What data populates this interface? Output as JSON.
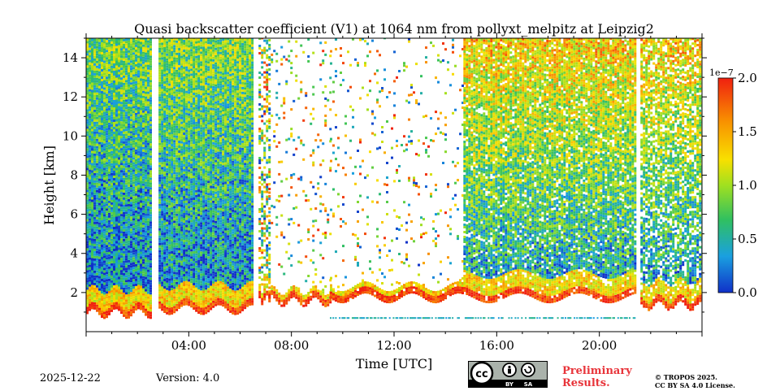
{
  "chart_data": {
    "type": "heatmap",
    "title": "Quasi backscatter coefficient (V1) at 1064 nm from pollyxt_melpitz at Leipzig2",
    "xlabel": "Time [UTC]",
    "ylabel": "Height [km]",
    "xlim_hours": [
      0,
      24
    ],
    "ylim_km": [
      0,
      15
    ],
    "x_ticks": [
      {
        "hour": 4,
        "label": "04:00"
      },
      {
        "hour": 8,
        "label": "08:00"
      },
      {
        "hour": 12,
        "label": "12:00"
      },
      {
        "hour": 16,
        "label": "16:00"
      },
      {
        "hour": 20,
        "label": "20:00"
      }
    ],
    "y_ticks": [
      {
        "km": 2,
        "label": "2"
      },
      {
        "km": 4,
        "label": "4"
      },
      {
        "km": 6,
        "label": "6"
      },
      {
        "km": 8,
        "label": "8"
      },
      {
        "km": 10,
        "label": "10"
      },
      {
        "km": 12,
        "label": "12"
      },
      {
        "km": 14,
        "label": "14"
      }
    ],
    "colorbar": {
      "min": 0.0,
      "max": 2.0,
      "exponent_label": "1e−7",
      "ticks": [
        {
          "value": 0.0,
          "label": "0.0"
        },
        {
          "value": 0.5,
          "label": "0.5"
        },
        {
          "value": 1.0,
          "label": "1.0"
        },
        {
          "value": 1.5,
          "label": "1.5"
        },
        {
          "value": 2.0,
          "label": "2.0"
        }
      ],
      "colors": [
        "#1030c8",
        "#1aa0e0",
        "#30c060",
        "#a0e020",
        "#f8e000",
        "#f89000",
        "#f02010"
      ]
    },
    "data_gaps_hours": [
      [
        2.55,
        2.82
      ],
      [
        6.5,
        6.72
      ],
      [
        21.4,
        21.6
      ]
    ],
    "segments": [
      {
        "start_hour": 0.0,
        "end_hour": 2.55,
        "base_km": 0.8,
        "top_km": 15.0,
        "density": 1.0,
        "mean_value": 0.55
      },
      {
        "start_hour": 2.82,
        "end_hour": 6.5,
        "base_km": 1.0,
        "top_km": 15.0,
        "density": 1.0,
        "mean_value": 0.6
      },
      {
        "start_hour": 6.72,
        "end_hour": 7.1,
        "base_km": 1.5,
        "top_km": 15.0,
        "density": 0.45,
        "mean_value": 0.9
      },
      {
        "start_hour": 7.1,
        "end_hour": 9.5,
        "base_km": 1.4,
        "top_km": 15.0,
        "density": 0.08,
        "mean_value": 0.9
      },
      {
        "start_hour": 9.5,
        "end_hour": 14.7,
        "base_km": 1.6,
        "top_km": 15.0,
        "density": 0.06,
        "mean_value": 1.0
      },
      {
        "start_hour": 14.7,
        "end_hour": 21.4,
        "base_km": 1.6,
        "top_km": 15.0,
        "density": 0.9,
        "mean_value": 0.9
      },
      {
        "start_hour": 21.6,
        "end_hour": 24.0,
        "base_km": 1.2,
        "top_km": 15.0,
        "density": 0.75,
        "mean_value": 0.9
      }
    ]
  },
  "footer": {
    "date": "2025-12-22",
    "version": "Version: 4.0",
    "license_badge": {
      "icon": "cc-icon",
      "by": "BY",
      "sa": "SA"
    },
    "preliminary_line1": "Preliminary",
    "preliminary_line2": "Results.",
    "copyright_line1": "© TROPOS 2025.",
    "copyright_line2": "CC BY SA 4.0 License."
  }
}
